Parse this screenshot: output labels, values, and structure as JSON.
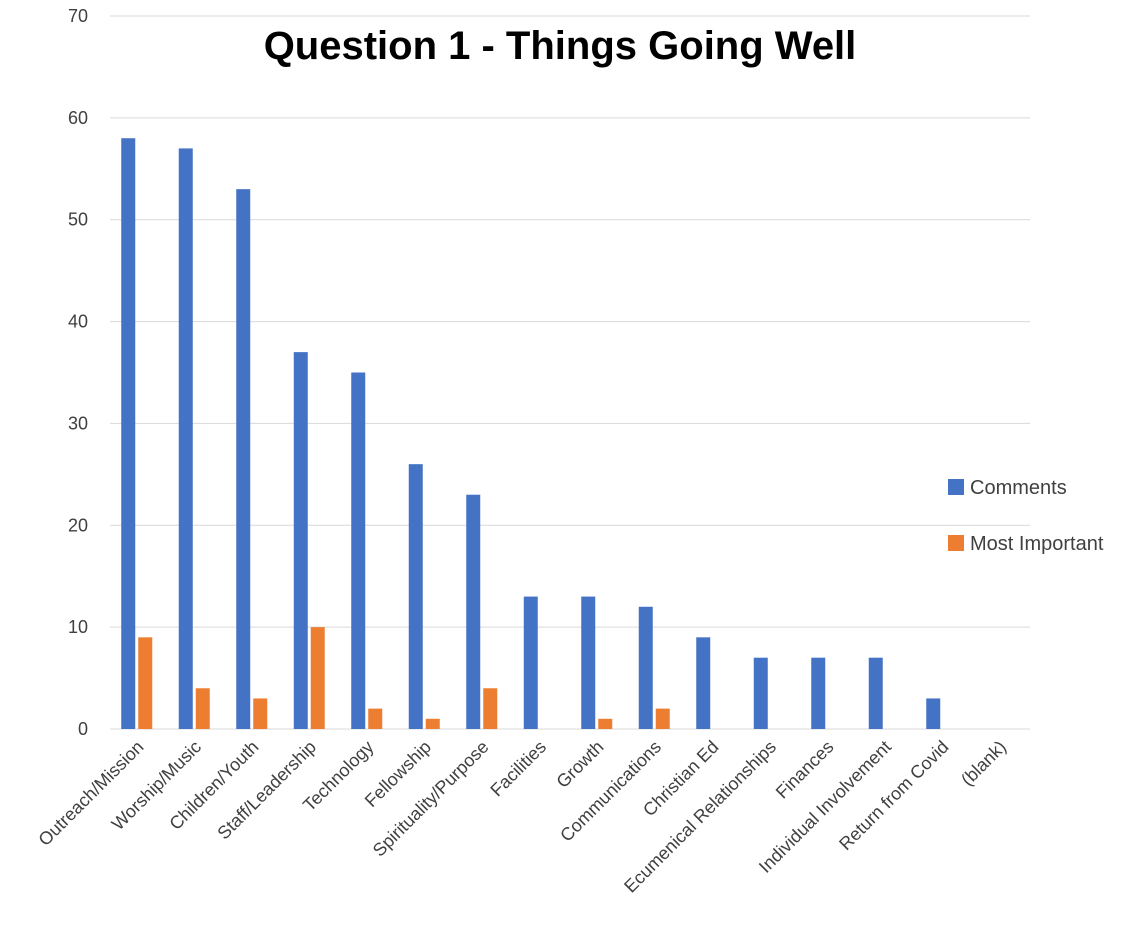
{
  "chart_data": {
    "type": "bar",
    "title": "Question 1 - Things Going Well",
    "xlabel": "",
    "ylabel": "",
    "ylim": [
      0,
      70
    ],
    "yticks": [
      0,
      10,
      20,
      30,
      40,
      50,
      60,
      70
    ],
    "grid": true,
    "legend_position": "right",
    "categories": [
      "Outreach/Mission",
      "Worship/Music",
      "Children/Youth",
      "Staff/Leadership",
      "Technology",
      "Fellowship",
      "Spirituality/Purpose",
      "Facilities",
      "Growth",
      "Communications",
      "Christian Ed",
      "Ecumenical Relationships",
      "Finances",
      "Individual Involvement",
      "Return from Covid",
      "(blank)"
    ],
    "series": [
      {
        "name": "Comments",
        "color": "#4472C4",
        "values": [
          58,
          57,
          53,
          37,
          35,
          26,
          23,
          13,
          13,
          12,
          9,
          7,
          7,
          7,
          3,
          0
        ]
      },
      {
        "name": "Most Important",
        "color": "#ED7D31",
        "values": [
          9,
          4,
          3,
          10,
          2,
          1,
          4,
          0,
          1,
          2,
          0,
          0,
          0,
          0,
          0,
          0
        ]
      }
    ]
  }
}
